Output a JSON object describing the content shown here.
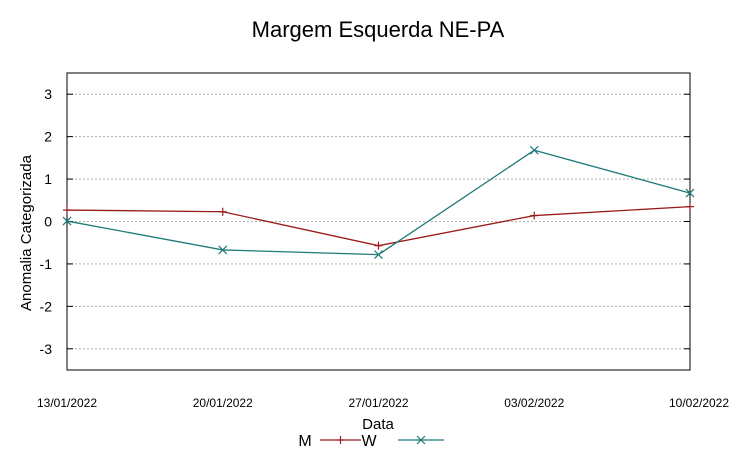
{
  "chart_data": {
    "type": "line",
    "title": "Margem Esquerda NE-PA",
    "xlabel": "Data",
    "ylabel": "Anomalia Categorizada",
    "categories": [
      "13/01/2022",
      "20/01/2022",
      "27/01/2022",
      "03/02/2022",
      "10/02/2022"
    ],
    "y_ticks": [
      3,
      2,
      1,
      0,
      -1,
      -2,
      -3
    ],
    "ylim": [
      -3.5,
      3.5
    ],
    "grid": true,
    "series": [
      {
        "name": "M",
        "color": "#9b1b1b",
        "marker": "+",
        "values": [
          0.27,
          0.23,
          -0.57,
          0.14,
          0.35
        ]
      },
      {
        "name": "W",
        "color": "#1f7a78",
        "marker": "x",
        "values": [
          0.01,
          -0.67,
          -0.78,
          1.68,
          0.67
        ]
      }
    ]
  }
}
